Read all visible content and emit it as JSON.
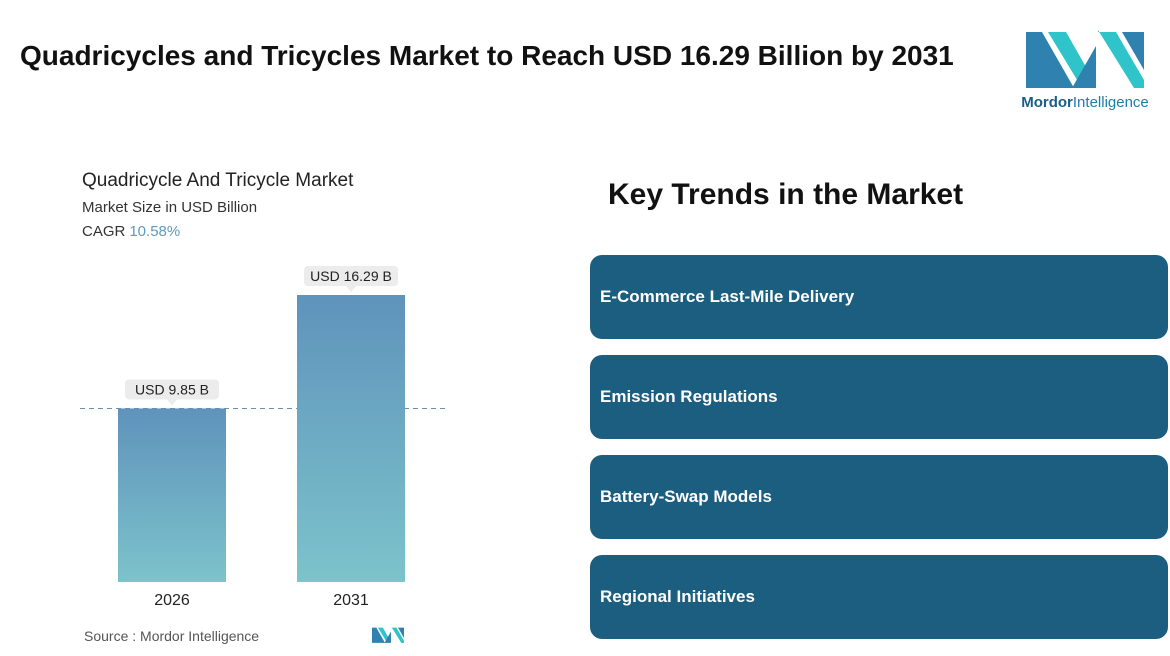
{
  "header": {
    "title": "Quadricycles and Tricycles Market to Reach USD 16.29 Billion by 2031"
  },
  "brand": {
    "name_bold": "Mordor",
    "name_rest": "Intelligence",
    "colors": {
      "dark": "#2f82b0",
      "light": "#2ec4c9"
    },
    "icon": "mordor-logo-icon"
  },
  "chart_data": {
    "type": "bar",
    "title": "Quadricycle And Tricycle Market",
    "subtitle": "Market Size in USD Billion",
    "cagr_label": "CAGR",
    "cagr_value": "10.58%",
    "categories": [
      "2026",
      "2031"
    ],
    "values": [
      9.85,
      16.29
    ],
    "data_labels": [
      "USD 9.85 B",
      "USD 16.29 B"
    ],
    "ylim": [
      0,
      16.29
    ],
    "grid": false,
    "reference_line": {
      "value": 9.85,
      "style": "dashed"
    },
    "colors": {
      "bar_top": "#5f93bb",
      "bar_bottom": "#7cc3cb",
      "label_bg": "#ececec"
    }
  },
  "source": {
    "label": "Source :",
    "name": "Mordor Intelligence"
  },
  "trends": {
    "heading": "Key Trends in the Market",
    "items": [
      "E-Commerce Last-Mile Delivery",
      "Emission Regulations",
      "Battery-Swap Models",
      "Regional Initiatives"
    ],
    "color": "#1b5e80"
  }
}
